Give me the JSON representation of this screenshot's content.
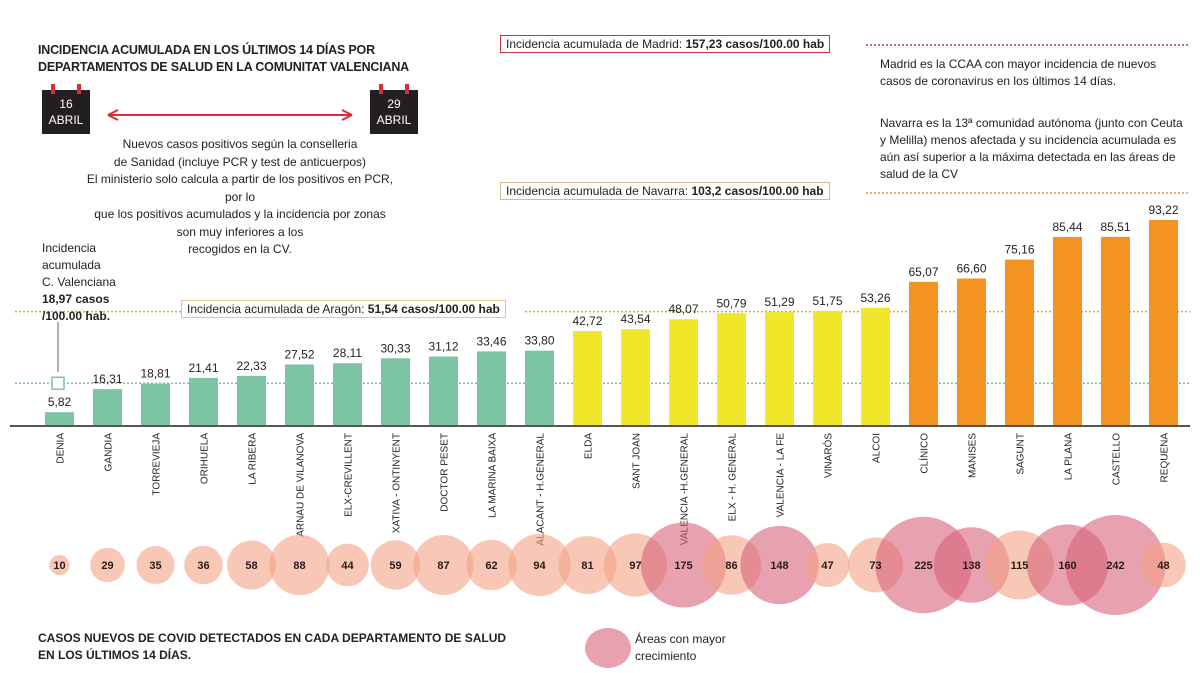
{
  "title_lines": [
    "INCIDENCIA ACUMULADA EN LOS ÚLTIMOS 14 DÍAS POR",
    "DEPARTAMENTOS DE SALUD EN LA COMUNITAT VALENCIANA"
  ],
  "dates": {
    "start_day": "16",
    "start_month": "ABRIL",
    "end_day": "29",
    "end_month": "ABRIL"
  },
  "note_lines": [
    "Nuevos casos positivos según la conselleria",
    "de Sanidad (incluye PCR y test de anticuerpos)",
    "El ministerio solo calcula a partir de los positivos en PCR, por lo",
    "que los positivos acumulados y la incidencia por zonas",
    "son muy inferiores a los",
    "recogidos en la CV."
  ],
  "cv_note": {
    "lines": [
      "Incidencia",
      "acumulada",
      "C. Valenciana"
    ],
    "bold_lines": [
      "18,97 casos",
      "/100.00 hab."
    ]
  },
  "references": {
    "madrid": {
      "label": "Incidencia acumulada de Madrid: ",
      "value": "157,23 casos/100.00 hab",
      "color": "#c8343f"
    },
    "navarra": {
      "label": "Incidencia acumulada de Navarra: ",
      "value": "103,2 casos/100.00 hab",
      "color": "#e39a4a"
    },
    "aragon": {
      "label": "Incidencia acumulada de Aragón: ",
      "value": "51,54 casos/100.00 hab",
      "color": "#d9a63a"
    }
  },
  "right_notes": {
    "madrid": "Madrid es la CCAA con mayor incidencia de nuevos casos de coronavirus en los últimos 14 días.",
    "navarra": "Navarra es la 13ª comunidad autónoma (junto con Ceuta y Melilla) menos afectada y su incidencia acumulada es aún así superior a la máxima detectada en las  áreas de salud de la CV"
  },
  "bottom_title_lines": [
    "CASOS NUEVOS DE COVID DETECTADOS EN CADA DEPARTAMENTO DE SALUD",
    "EN LOS ÚLTIMOS 14 DÍAS."
  ],
  "legend": {
    "lines": [
      "Áreas con mayor",
      "crecimiento"
    ],
    "color": "#d9627a"
  },
  "chart_data": {
    "type": "bar",
    "title": "INCIDENCIA ACUMULADA EN LOS ÚLTIMOS 14 DÍAS POR DEPARTAMENTOS DE SALUD EN LA COMUNITAT VALENCIANA",
    "categories": [
      "DENIA",
      "GANDIA",
      "TORREVIEJA",
      "ORIHUELA",
      "LA RIBERA",
      "ARNAU DE VILANOVA",
      "ELX-CREVILLENT",
      "XATIVA - ONTINYENT",
      "DOCTOR PESET",
      "LA MARINA BAIXA",
      "ALACANT - H.GENERAL",
      "ELDA",
      "SANT JOAN",
      "VALENCIA -H.GENERAL",
      "ELX - H. GENERAL",
      "VALENCIA - LA FE",
      "VINARÓS",
      "ALCOI",
      "CLÍNICO",
      "MANISES",
      "SAGUNT",
      "LA PLANA",
      "CASTELLO",
      "REQUENA"
    ],
    "values": [
      5.82,
      16.31,
      18.81,
      21.41,
      22.33,
      27.52,
      28.11,
      30.33,
      31.12,
      33.46,
      33.8,
      42.72,
      43.54,
      48.07,
      50.79,
      51.29,
      51.75,
      53.26,
      65.07,
      66.6,
      75.16,
      85.44,
      85.51,
      93.22
    ],
    "value_labels": [
      "5,82",
      "16,31",
      "18,81",
      "21,41",
      "22,33",
      "27,52",
      "28,11",
      "30,33",
      "31,12",
      "33,46",
      "33,80",
      "42,72",
      "43,54",
      "48,07",
      "50,79",
      "51,29",
      "51,75",
      "53,26",
      "65,07",
      "66,60",
      "75,16",
      "85,44",
      "85,51",
      "93,22"
    ],
    "bar_groups": [
      {
        "from": 0,
        "to": 10,
        "color": "#7dc4a4"
      },
      {
        "from": 11,
        "to": 17,
        "color": "#f2e62a"
      },
      {
        "from": 18,
        "to": 23,
        "color": "#f39322"
      }
    ],
    "reference_lines": [
      {
        "name": "C. Valenciana",
        "value": 18.97,
        "color": "#7dc4a4"
      },
      {
        "name": "Aragón",
        "value": 51.54,
        "color": "#d9a63a"
      },
      {
        "name": "Navarra",
        "value": 103.2,
        "color": "#e39a4a"
      },
      {
        "name": "Madrid",
        "value": 157.23,
        "color": "#c8343f"
      }
    ],
    "bubbles": {
      "type": "bubble",
      "values": [
        10,
        29,
        35,
        36,
        58,
        88,
        44,
        59,
        87,
        62,
        94,
        81,
        97,
        175,
        86,
        148,
        47,
        73,
        225,
        138,
        115,
        160,
        242,
        48
      ],
      "highlighted": [
        false,
        false,
        false,
        false,
        false,
        false,
        false,
        false,
        false,
        false,
        false,
        false,
        false,
        true,
        false,
        true,
        false,
        false,
        true,
        true,
        false,
        true,
        true,
        false
      ],
      "color": "#f4a286",
      "highlight_color": "#d9627a"
    },
    "ylim": [
      0,
      93.22
    ],
    "grid": false
  }
}
